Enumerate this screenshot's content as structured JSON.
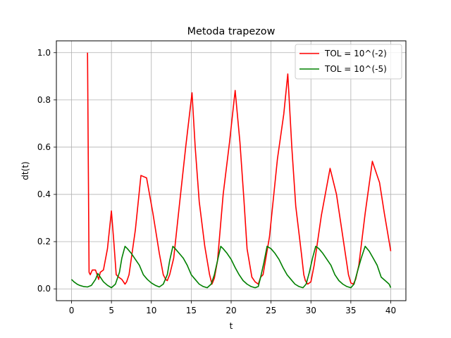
{
  "chart_data": {
    "type": "line",
    "title": "Metoda trapezow",
    "xlabel": "t",
    "ylabel": "dt(t)",
    "xlim": [
      -1.9,
      41.9
    ],
    "ylim": [
      -0.05,
      1.05
    ],
    "xticks": [
      0,
      5,
      10,
      15,
      20,
      25,
      30,
      35,
      40
    ],
    "xtick_labels": [
      "0",
      "5",
      "10",
      "15",
      "20",
      "25",
      "30",
      "35",
      "40"
    ],
    "yticks": [
      0.0,
      0.2,
      0.4,
      0.6,
      0.8,
      1.0
    ],
    "ytick_labels": [
      "0.0",
      "0.2",
      "0.4",
      "0.6",
      "0.8",
      "1.0"
    ],
    "grid": true,
    "legend_position": "upper-right",
    "series": [
      {
        "name": "TOL = 10^(-2)",
        "color": "#ff0000",
        "x": [
          2.0,
          2.2,
          2.35,
          2.6,
          3.0,
          3.2,
          3.4,
          3.6,
          4.0,
          4.5,
          5.0,
          5.3,
          5.6,
          5.9,
          6.3,
          6.7,
          6.9,
          7.2,
          8.0,
          8.7,
          9.4,
          10.2,
          11.0,
          11.5,
          11.8,
          12.0,
          12.3,
          12.8,
          13.5,
          14.3,
          15.1,
          15.5,
          16.0,
          16.7,
          17.3,
          17.6,
          17.9,
          18.3,
          19.0,
          19.8,
          20.5,
          21.1,
          21.6,
          22.0,
          22.6,
          23.0,
          23.4,
          23.7,
          24.0,
          24.8,
          25.8,
          26.6,
          27.1,
          27.6,
          28.1,
          28.8,
          29.1,
          29.3,
          29.6,
          30.0,
          30.4,
          31.3,
          32.4,
          33.2,
          34.0,
          34.7,
          35.0,
          35.3,
          35.6,
          36.0,
          36.8,
          37.7,
          38.6,
          39.2,
          40.0
        ],
        "y": [
          1.0,
          0.07,
          0.06,
          0.08,
          0.08,
          0.06,
          0.04,
          0.07,
          0.08,
          0.17,
          0.33,
          0.2,
          0.06,
          0.05,
          0.04,
          0.02,
          0.03,
          0.06,
          0.25,
          0.48,
          0.47,
          0.32,
          0.15,
          0.06,
          0.04,
          0.035,
          0.06,
          0.13,
          0.35,
          0.6,
          0.83,
          0.6,
          0.37,
          0.18,
          0.06,
          0.02,
          0.045,
          0.12,
          0.4,
          0.62,
          0.84,
          0.62,
          0.38,
          0.17,
          0.05,
          0.03,
          0.02,
          0.05,
          0.06,
          0.22,
          0.55,
          0.74,
          0.91,
          0.6,
          0.35,
          0.15,
          0.06,
          0.035,
          0.02,
          0.03,
          0.1,
          0.31,
          0.51,
          0.4,
          0.22,
          0.06,
          0.025,
          0.02,
          0.04,
          0.1,
          0.32,
          0.54,
          0.45,
          0.32,
          0.16
        ]
      },
      {
        "name": "TOL = 10^(-5)",
        "color": "#008000",
        "x": [
          0.0,
          0.3,
          0.7,
          1.0,
          1.5,
          2.0,
          2.5,
          3.0,
          3.3,
          3.6,
          4.0,
          4.5,
          5.0,
          5.5,
          6.0,
          6.3,
          6.7,
          7.0,
          7.5,
          8.0,
          8.5,
          9.0,
          9.5,
          10.0,
          10.5,
          11.0,
          11.5,
          12.0,
          12.3,
          12.7,
          13.0,
          13.5,
          14.0,
          14.5,
          15.0,
          15.5,
          16.0,
          16.5,
          17.0,
          17.5,
          17.9,
          18.3,
          18.7,
          19.0,
          19.5,
          20.0,
          20.5,
          21.0,
          21.5,
          22.0,
          22.5,
          23.0,
          23.4,
          23.7,
          24.1,
          24.5,
          25.0,
          25.5,
          26.0,
          26.5,
          27.0,
          27.5,
          28.0,
          28.5,
          29.0,
          29.4,
          29.8,
          30.2,
          30.6,
          31.0,
          31.5,
          32.0,
          32.5,
          33.0,
          33.5,
          34.0,
          34.5,
          35.0,
          35.4,
          35.8,
          36.3,
          36.8,
          37.3,
          37.8,
          38.3,
          38.8,
          39.3,
          39.8,
          40.0
        ],
        "y": [
          0.04,
          0.03,
          0.02,
          0.015,
          0.01,
          0.008,
          0.015,
          0.04,
          0.065,
          0.05,
          0.03,
          0.015,
          0.005,
          0.02,
          0.07,
          0.13,
          0.18,
          0.17,
          0.15,
          0.125,
          0.1,
          0.06,
          0.04,
          0.025,
          0.015,
          0.008,
          0.02,
          0.06,
          0.12,
          0.18,
          0.17,
          0.15,
          0.13,
          0.1,
          0.06,
          0.04,
          0.02,
          0.01,
          0.005,
          0.02,
          0.06,
          0.12,
          0.18,
          0.17,
          0.15,
          0.125,
          0.09,
          0.06,
          0.035,
          0.02,
          0.01,
          0.005,
          0.01,
          0.05,
          0.11,
          0.18,
          0.17,
          0.15,
          0.125,
          0.09,
          0.06,
          0.04,
          0.02,
          0.01,
          0.005,
          0.02,
          0.07,
          0.13,
          0.18,
          0.17,
          0.15,
          0.125,
          0.1,
          0.06,
          0.035,
          0.02,
          0.01,
          0.005,
          0.02,
          0.07,
          0.13,
          0.18,
          0.16,
          0.13,
          0.1,
          0.05,
          0.035,
          0.02,
          0.005
        ]
      }
    ]
  }
}
